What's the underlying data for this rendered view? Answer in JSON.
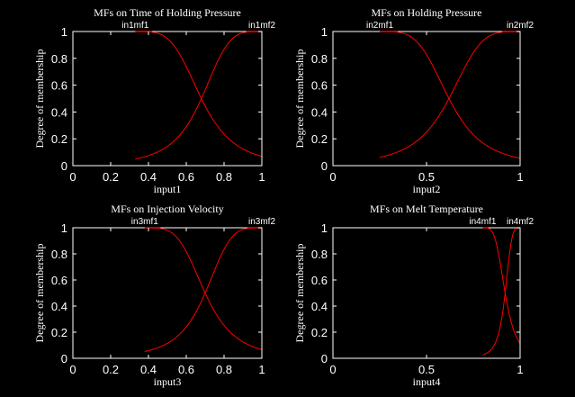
{
  "chart_data": [
    {
      "type": "line",
      "title": "MFs on Time of Holding Pressure",
      "xlabel": "input1",
      "ylabel": "Degree of membership",
      "xlim": [
        0,
        1
      ],
      "ylim": [
        0,
        1
      ],
      "xticks": [
        0,
        0.2,
        0.4,
        0.6,
        0.8,
        1
      ],
      "xtick_labels": [
        "0",
        "0.2",
        "0.4",
        "0.6",
        "0.8",
        "1"
      ],
      "yticks": [
        0,
        0.2,
        0.4,
        0.6,
        0.8,
        1
      ],
      "ytick_labels": [
        "0",
        "0.2",
        "0.4",
        "0.6",
        "0.8",
        "1"
      ],
      "series": [
        {
          "name": "in1mf1",
          "mf": "gbellmf",
          "params": [
            0.35,
            2,
            0.33
          ],
          "range": [
            0.33,
            1
          ]
        },
        {
          "name": "in1mf2",
          "mf": "gbellmf",
          "params": [
            0.32,
            2,
            1.0
          ],
          "range": [
            0.33,
            1
          ]
        }
      ]
    },
    {
      "type": "line",
      "title": "MFs on Holding Pressure",
      "xlabel": "input2",
      "ylabel": "Degree of membership",
      "xlim": [
        0,
        1
      ],
      "ylim": [
        0,
        1
      ],
      "xticks": [
        0,
        0.5,
        1
      ],
      "xtick_labels": [
        "0",
        "0.5",
        "1"
      ],
      "yticks": [
        0,
        0.2,
        0.4,
        0.6,
        0.8,
        1
      ],
      "ytick_labels": [
        "0",
        "0.2",
        "0.4",
        "0.6",
        "0.8",
        "1"
      ],
      "series": [
        {
          "name": "in2mf1",
          "mf": "gbellmf",
          "params": [
            0.37,
            2,
            0.25
          ],
          "range": [
            0.25,
            1
          ]
        },
        {
          "name": "in2mf2",
          "mf": "gbellmf",
          "params": [
            0.38,
            2,
            1.0
          ],
          "range": [
            0.25,
            1
          ]
        }
      ]
    },
    {
      "type": "line",
      "title": "MFs on Injection Velocity",
      "xlabel": "input3",
      "ylabel": "Degree of membership",
      "xlim": [
        0,
        1
      ],
      "ylim": [
        0,
        1
      ],
      "xticks": [
        0,
        0.2,
        0.4,
        0.6,
        0.8,
        1
      ],
      "xtick_labels": [
        "0",
        "0.2",
        "0.4",
        "0.6",
        "0.8",
        "1"
      ],
      "yticks": [
        0,
        0.2,
        0.4,
        0.6,
        0.8,
        1
      ],
      "ytick_labels": [
        "0",
        "0.2",
        "0.4",
        "0.6",
        "0.8",
        "1"
      ],
      "series": [
        {
          "name": "in3mf1",
          "mf": "gbellmf",
          "params": [
            0.32,
            2,
            0.38
          ],
          "range": [
            0.38,
            1
          ]
        },
        {
          "name": "in3mf2",
          "mf": "gbellmf",
          "params": [
            0.3,
            2,
            1.0
          ],
          "range": [
            0.38,
            1
          ]
        }
      ]
    },
    {
      "type": "line",
      "title": "MFs on Melt Temperature",
      "xlabel": "input4",
      "ylabel": "Degree of membership",
      "xlim": [
        0,
        1
      ],
      "ylim": [
        0,
        1
      ],
      "xticks": [
        0,
        0.5,
        1
      ],
      "xtick_labels": [
        "0",
        "0.5",
        "1"
      ],
      "yticks": [
        0,
        0.2,
        0.4,
        0.6,
        0.8,
        1
      ],
      "ytick_labels": [
        "0",
        "0.2",
        "0.4",
        "0.6",
        "0.8",
        "1"
      ],
      "series": [
        {
          "name": "in4mf1",
          "mf": "gbellmf",
          "params": [
            0.12,
            2,
            0.8
          ],
          "range": [
            0.8,
            1
          ]
        },
        {
          "name": "in4mf2",
          "mf": "gbellmf",
          "params": [
            0.08,
            2,
            1.0
          ],
          "range": [
            0.8,
            1
          ]
        }
      ]
    }
  ],
  "colors": {
    "background": "#000000",
    "axes": "#ffffff",
    "curve": "#ff0000"
  }
}
